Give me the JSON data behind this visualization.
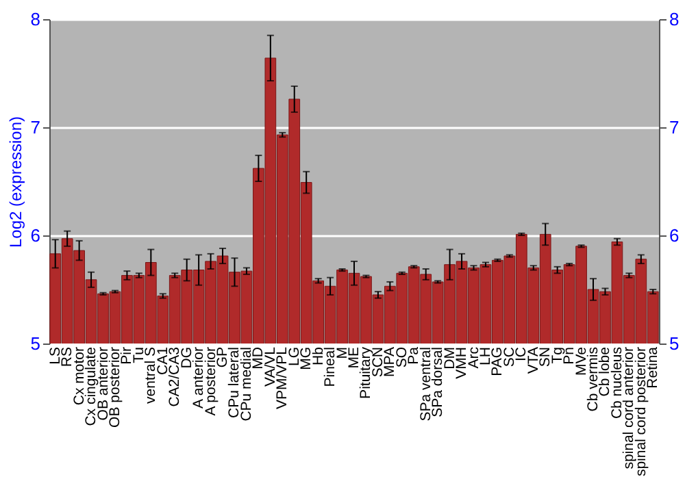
{
  "chart_data": {
    "type": "bar",
    "ylabel": "Log2 (expression)",
    "categories": [
      "LS",
      "RS",
      "Cx motor",
      "Cx cingulate",
      "OB anterior",
      "OB posterior",
      "Pir",
      "Tu",
      "ventral S",
      "CA1",
      "CA2/CA3",
      "DG",
      "A anterior",
      "A posterior",
      "GP",
      "CPu lateral",
      "CPu medial",
      "MD",
      "VA/VL",
      "VPM/VPL",
      "LG",
      "MG",
      "Hb",
      "Pineal",
      "M",
      "ME",
      "Pituitary",
      "SCN",
      "MPA",
      "SO",
      "Pa",
      "SPa ventral",
      "SPa dorsal",
      "DM",
      "VMH",
      "Arc",
      "LH",
      "PAG",
      "SC",
      "IC",
      "VTA",
      "SN",
      "Tg",
      "Pn",
      "MVe",
      "Cb vermis",
      "Cb lobe",
      "Cb nucleus",
      "spinal cord anterior",
      "spinal cord posterior",
      "Retina"
    ],
    "values": [
      5.83,
      5.97,
      5.86,
      5.59,
      5.46,
      5.48,
      5.63,
      5.63,
      5.75,
      5.44,
      5.63,
      5.68,
      5.68,
      5.76,
      5.81,
      5.66,
      5.67,
      6.62,
      7.64,
      6.93,
      7.26,
      6.49,
      5.58,
      5.53,
      5.68,
      5.65,
      5.62,
      5.45,
      5.53,
      5.65,
      5.71,
      5.64,
      5.57,
      5.73,
      5.76,
      5.7,
      5.73,
      5.77,
      5.81,
      6.01,
      5.7,
      6.01,
      5.68,
      5.73,
      5.9,
      5.5,
      5.48,
      5.94,
      5.63,
      5.78,
      5.48
    ],
    "errors": [
      0.13,
      0.07,
      0.09,
      0.07,
      0.01,
      0.01,
      0.04,
      0.02,
      0.12,
      0.02,
      0.02,
      0.1,
      0.14,
      0.07,
      0.07,
      0.13,
      0.03,
      0.12,
      0.21,
      0.02,
      0.12,
      0.1,
      0.02,
      0.08,
      0.01,
      0.11,
      0.01,
      0.03,
      0.04,
      0.01,
      0.01,
      0.05,
      0.01,
      0.14,
      0.07,
      0.02,
      0.02,
      0.01,
      0.01,
      0.01,
      0.02,
      0.1,
      0.03,
      0.01,
      0.01,
      0.1,
      0.03,
      0.03,
      0.02,
      0.04,
      0.02
    ],
    "color": "#b02a2a",
    "ylim": [
      5,
      8
    ],
    "yticks": [
      5,
      6,
      7,
      8
    ],
    "y2lim": [
      5,
      8
    ],
    "y2ticks": [
      5,
      6,
      7,
      8
    ],
    "grid": "y"
  }
}
